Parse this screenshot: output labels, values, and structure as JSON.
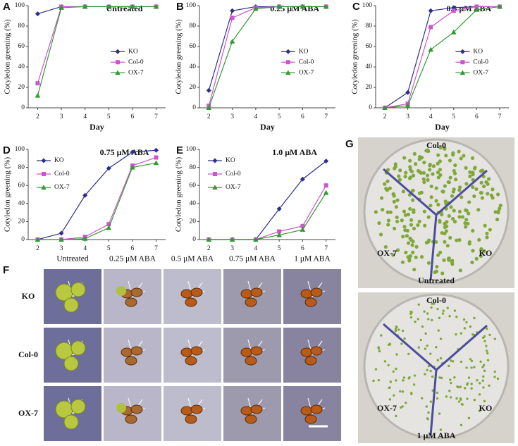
{
  "chart_data": [
    {
      "type": "line",
      "label": "A",
      "title": "Untreated",
      "ylabel": "Cotyledon greening (%)",
      "xlabel": "Day",
      "x": [
        2,
        3,
        4,
        5,
        6,
        7
      ],
      "xlim": [
        1.6,
        7.4
      ],
      "xticks": [
        2,
        3,
        4,
        5,
        6,
        7
      ],
      "ylim": [
        0,
        100
      ],
      "yticks": [
        0,
        20,
        40,
        60,
        80,
        100
      ],
      "legend": "right",
      "series": [
        {
          "name": "KO",
          "color": "#2e2e8a",
          "marker": "diamond",
          "values": [
            92,
            99,
            99,
            99,
            99,
            99
          ]
        },
        {
          "name": "Col-0",
          "color": "#cc55cc",
          "marker": "square",
          "values": [
            24,
            99,
            99,
            99,
            99,
            99
          ]
        },
        {
          "name": "OX-7",
          "color": "#339933",
          "marker": "triangle",
          "values": [
            12,
            98,
            99,
            99,
            99,
            99
          ]
        }
      ]
    },
    {
      "type": "line",
      "label": "B",
      "title": "0.25 μM ABA",
      "ylabel": "Cotyledon greening (%)",
      "xlabel": "Day",
      "x": [
        2,
        3,
        4,
        5,
        6,
        7
      ],
      "xlim": [
        1.6,
        7.4
      ],
      "xticks": [
        2,
        3,
        4,
        5,
        6,
        7
      ],
      "ylim": [
        0,
        100
      ],
      "yticks": [
        0,
        20,
        40,
        60,
        80,
        100
      ],
      "legend": "right",
      "series": [
        {
          "name": "KO",
          "color": "#2e2e8a",
          "marker": "diamond",
          "values": [
            17,
            95,
            99,
            99,
            99,
            99
          ]
        },
        {
          "name": "Col-0",
          "color": "#cc55cc",
          "marker": "square",
          "values": [
            2,
            88,
            98,
            99,
            99,
            99
          ]
        },
        {
          "name": "OX-7",
          "color": "#339933",
          "marker": "triangle",
          "values": [
            0,
            65,
            97,
            99,
            99,
            99
          ]
        }
      ]
    },
    {
      "type": "line",
      "label": "C",
      "title": "0.5 μM ABA",
      "ylabel": "Cotyledon greening (%)",
      "xlabel": "Day",
      "x": [
        2,
        3,
        4,
        5,
        6,
        7
      ],
      "xlim": [
        1.6,
        7.4
      ],
      "xticks": [
        2,
        3,
        4,
        5,
        6,
        7
      ],
      "ylim": [
        0,
        100
      ],
      "yticks": [
        0,
        20,
        40,
        60,
        80,
        100
      ],
      "legend": "right",
      "series": [
        {
          "name": "KO",
          "color": "#2e2e8a",
          "marker": "diamond",
          "values": [
            0,
            15,
            95,
            98,
            99,
            99
          ]
        },
        {
          "name": "Col-0",
          "color": "#cc55cc",
          "marker": "square",
          "values": [
            0,
            4,
            79,
            95,
            99,
            99
          ]
        },
        {
          "name": "OX-7",
          "color": "#339933",
          "marker": "triangle",
          "values": [
            0,
            2,
            57,
            74,
            96,
            99
          ]
        }
      ]
    },
    {
      "type": "line",
      "label": "D",
      "title": "0.75 μM ABA",
      "ylabel": "Cotyledon greening (%)",
      "x": [
        2,
        3,
        4,
        5,
        6,
        7
      ],
      "xlim": [
        1.6,
        7.4
      ],
      "xticks": [
        2,
        3,
        4,
        5,
        6,
        7
      ],
      "ylim": [
        0,
        100
      ],
      "yticks": [
        0,
        20,
        40,
        60,
        80,
        100
      ],
      "legend": "upper-left",
      "series": [
        {
          "name": "KO",
          "color": "#2e2e8a",
          "marker": "diamond",
          "values": [
            0,
            7,
            49,
            79,
            97,
            99
          ]
        },
        {
          "name": "Col-0",
          "color": "#cc55cc",
          "marker": "square",
          "values": [
            0,
            0,
            3,
            17,
            82,
            91
          ]
        },
        {
          "name": "OX-7",
          "color": "#339933",
          "marker": "triangle",
          "values": [
            0,
            0,
            1,
            13,
            80,
            85
          ]
        }
      ]
    },
    {
      "type": "line",
      "label": "E",
      "title": "1.0 μM ABA",
      "ylabel": "Cotyledon greening (%)",
      "x": [
        2,
        3,
        4,
        5,
        6,
        7
      ],
      "xlim": [
        1.6,
        7.4
      ],
      "xticks": [
        2,
        3,
        4,
        5,
        6,
        7
      ],
      "ylim": [
        0,
        100
      ],
      "yticks": [
        0,
        20,
        40,
        60,
        80,
        100
      ],
      "legend": "upper-left",
      "series": [
        {
          "name": "KO",
          "color": "#2e2e8a",
          "marker": "diamond",
          "values": [
            0,
            0,
            0,
            34,
            67,
            87
          ]
        },
        {
          "name": "Col-0",
          "color": "#cc55cc",
          "marker": "square",
          "values": [
            0,
            0,
            0,
            9,
            15,
            60
          ]
        },
        {
          "name": "OX-7",
          "color": "#339933",
          "marker": "triangle",
          "values": [
            0,
            0,
            0,
            5,
            11,
            52
          ]
        }
      ]
    }
  ],
  "panel_f": {
    "label": "F",
    "columns": [
      "Untreated",
      "0.25 μM ABA",
      "0.5 μM ABA",
      "0.75 μM ABA",
      "1 μM ABA"
    ],
    "rows": [
      "KO",
      "Col-0",
      "OX-7"
    ]
  },
  "panel_g": {
    "label": "G",
    "dishes": [
      {
        "top": "Col-0",
        "left": "OX-7",
        "right": "KO",
        "caption": "Untreated"
      },
      {
        "top": "Col-0",
        "left": "OX-7",
        "right": "KO",
        "caption": "1 μM ABA"
      }
    ]
  }
}
